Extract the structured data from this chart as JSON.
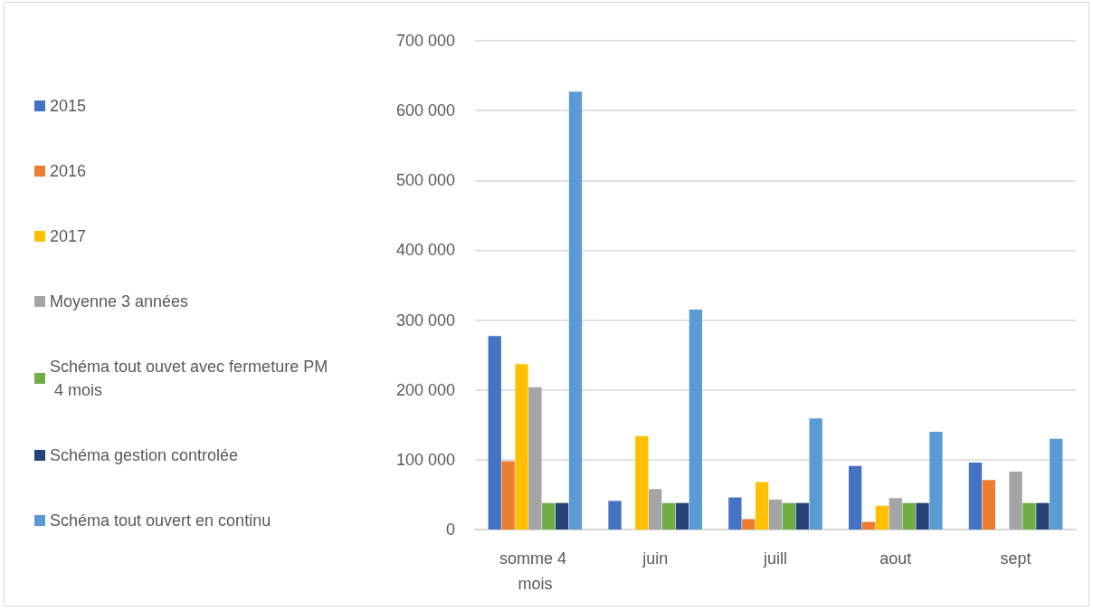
{
  "chart_data": {
    "type": "bar",
    "categories": [
      "somme 4 mois",
      "juin",
      "juill",
      "aout",
      "sept"
    ],
    "series": [
      {
        "name": "2015",
        "color": "#4472c4",
        "values": [
          277000,
          41000,
          46000,
          91000,
          96000
        ]
      },
      {
        "name": "2016",
        "color": "#ed7d31",
        "values": [
          98000,
          null,
          15000,
          11000,
          71000
        ]
      },
      {
        "name": "2017",
        "color": "#ffc000",
        "values": [
          237000,
          134000,
          68000,
          34000,
          null
        ]
      },
      {
        "name": "Moyenne 3 années",
        "color": "#a5a5a5",
        "values": [
          204000,
          58000,
          43000,
          45000,
          83000
        ]
      },
      {
        "name": "Schéma tout ouvet avec fermeture PM 4 mois",
        "color": "#70ad47",
        "values": [
          38000,
          38000,
          38000,
          38000,
          38000
        ]
      },
      {
        "name": "Schéma gestion controlée",
        "color": "#264478",
        "values": [
          38000,
          38000,
          38000,
          38000,
          38000
        ]
      },
      {
        "name": "Schéma tout ouvert en continu",
        "color": "#5b9bd5",
        "values": [
          627000,
          315000,
          159000,
          140000,
          130000
        ]
      }
    ],
    "ylim": [
      0,
      700000
    ],
    "yticks": [
      {
        "value": 0,
        "label": "0"
      },
      {
        "value": 100000,
        "label": "100 000"
      },
      {
        "value": 200000,
        "label": "200 000"
      },
      {
        "value": 300000,
        "label": "300 000"
      },
      {
        "value": 400000,
        "label": "400 000"
      },
      {
        "value": 500000,
        "label": "500 000"
      },
      {
        "value": 600000,
        "label": "600 000"
      },
      {
        "value": 700000,
        "label": "700 000"
      }
    ],
    "grid": "y",
    "legend": "left"
  }
}
